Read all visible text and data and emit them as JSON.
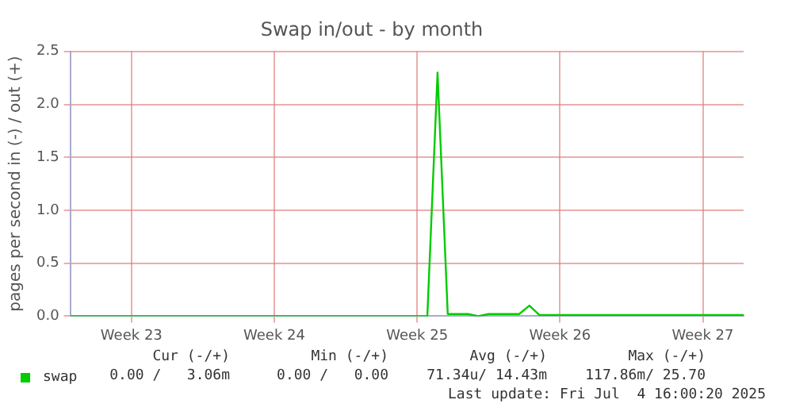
{
  "chart_data": {
    "type": "line",
    "title": "Swap in/out - by month",
    "ylabel": "pages per second in (-) / out (+)",
    "categories": [
      null,
      null,
      null,
      null,
      null,
      null,
      "Week 23",
      null,
      null,
      null,
      null,
      null,
      null,
      null,
      null,
      null,
      null,
      null,
      null,
      null,
      "Week 24",
      null,
      null,
      null,
      null,
      null,
      null,
      null,
      null,
      null,
      null,
      null,
      null,
      null,
      "Week 25",
      null,
      null,
      null,
      null,
      null,
      null,
      null,
      null,
      null,
      null,
      null,
      null,
      null,
      "Week 26",
      null,
      null,
      null,
      null,
      null,
      null,
      null,
      null,
      null,
      null,
      null,
      null,
      null,
      "Week 27",
      null,
      null,
      null,
      null
    ],
    "series": [
      {
        "name": "swap",
        "color": "#00cc00",
        "values": [
          0,
          0,
          0,
          0,
          0,
          0,
          0,
          0,
          0,
          0,
          0,
          0,
          0,
          0,
          0,
          0,
          0,
          0,
          0,
          0,
          0,
          0,
          0,
          0,
          0,
          0,
          0,
          0,
          0,
          0,
          0,
          0,
          0,
          0,
          0,
          0,
          2.3,
          0.02,
          0.02,
          0.02,
          0,
          0.02,
          0.02,
          0.02,
          0.02,
          0.1,
          0.01,
          0.01,
          0.01,
          0.01,
          0.01,
          0.01,
          0.01,
          0.01,
          0.01,
          0.01,
          0.01,
          0.01,
          0.01,
          0.01,
          0.01,
          0.01,
          0.01,
          0.01,
          0.01,
          0.01,
          0.01
        ]
      }
    ],
    "ylim": [
      0,
      2.5
    ],
    "yticks": [
      {
        "value": 0,
        "label": "0.0"
      },
      {
        "value": 0.5,
        "label": "0.5"
      },
      {
        "value": 1,
        "label": "1.0"
      },
      {
        "value": 1.5,
        "label": "1.5"
      },
      {
        "value": 2,
        "label": "2.0"
      },
      {
        "value": 2.5,
        "label": "2.5"
      }
    ],
    "grid": true,
    "legend": "bottom left",
    "marker": "none",
    "line_style": "solid",
    "annotations": [
      "Cur (-/+)",
      "Min (-/+)",
      "Avg (-/+)",
      "Max (-/+)",
      "0.00 /   3.06m",
      "0.00 /   0.00",
      "71.34u/ 14.43m",
      "117.86m/ 25.70",
      "Last update: Fri Jul  4 16:00:20 2025"
    ]
  }
}
